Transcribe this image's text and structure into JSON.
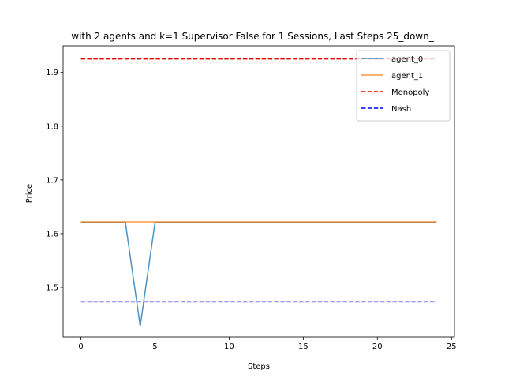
{
  "chart_data": {
    "type": "line",
    "title": "with 2 agents and k=1 Supervisor False for 1 Sessions, Last Steps 25_down_",
    "xlabel": "Steps",
    "ylabel": "Price",
    "xlim": [
      -1.2,
      25.2
    ],
    "ylim": [
      1.4075,
      1.9495
    ],
    "xticks": [
      0,
      5,
      10,
      15,
      20,
      25
    ],
    "yticks": [
      1.5,
      1.6,
      1.7,
      1.8,
      1.9
    ],
    "x": [
      0,
      1,
      2,
      3,
      4,
      5,
      6,
      7,
      8,
      9,
      10,
      11,
      12,
      13,
      14,
      15,
      16,
      17,
      18,
      19,
      20,
      21,
      22,
      23,
      24
    ],
    "series": [
      {
        "name": "agent_0",
        "style": "solid",
        "color": "#1f77b4",
        "values": [
          1.621,
          1.621,
          1.621,
          1.621,
          1.428,
          1.621,
          1.621,
          1.621,
          1.621,
          1.621,
          1.621,
          1.621,
          1.621,
          1.621,
          1.621,
          1.621,
          1.621,
          1.621,
          1.621,
          1.621,
          1.621,
          1.621,
          1.621,
          1.621,
          1.621
        ]
      },
      {
        "name": "agent_1",
        "style": "solid",
        "color": "#ff7f0e",
        "values": [
          1.622,
          1.622,
          1.622,
          1.622,
          1.622,
          1.622,
          1.622,
          1.622,
          1.622,
          1.622,
          1.622,
          1.622,
          1.622,
          1.622,
          1.622,
          1.622,
          1.622,
          1.622,
          1.622,
          1.622,
          1.622,
          1.622,
          1.622,
          1.622,
          1.622
        ]
      },
      {
        "name": "Monopoly",
        "style": "dashed",
        "color": "#e00000",
        "values": [
          1.925,
          1.925,
          1.925,
          1.925,
          1.925,
          1.925,
          1.925,
          1.925,
          1.925,
          1.925,
          1.925,
          1.925,
          1.925,
          1.925,
          1.925,
          1.925,
          1.925,
          1.925,
          1.925,
          1.925,
          1.925,
          1.925,
          1.925,
          1.925,
          1.925
        ]
      },
      {
        "name": "Nash",
        "style": "dashed",
        "color": "#0000e0",
        "values": [
          1.473,
          1.473,
          1.473,
          1.473,
          1.473,
          1.473,
          1.473,
          1.473,
          1.473,
          1.473,
          1.473,
          1.473,
          1.473,
          1.473,
          1.473,
          1.473,
          1.473,
          1.473,
          1.473,
          1.473,
          1.473,
          1.473,
          1.473,
          1.473,
          1.473
        ]
      }
    ],
    "grid": false,
    "legend_position": "top-right"
  }
}
